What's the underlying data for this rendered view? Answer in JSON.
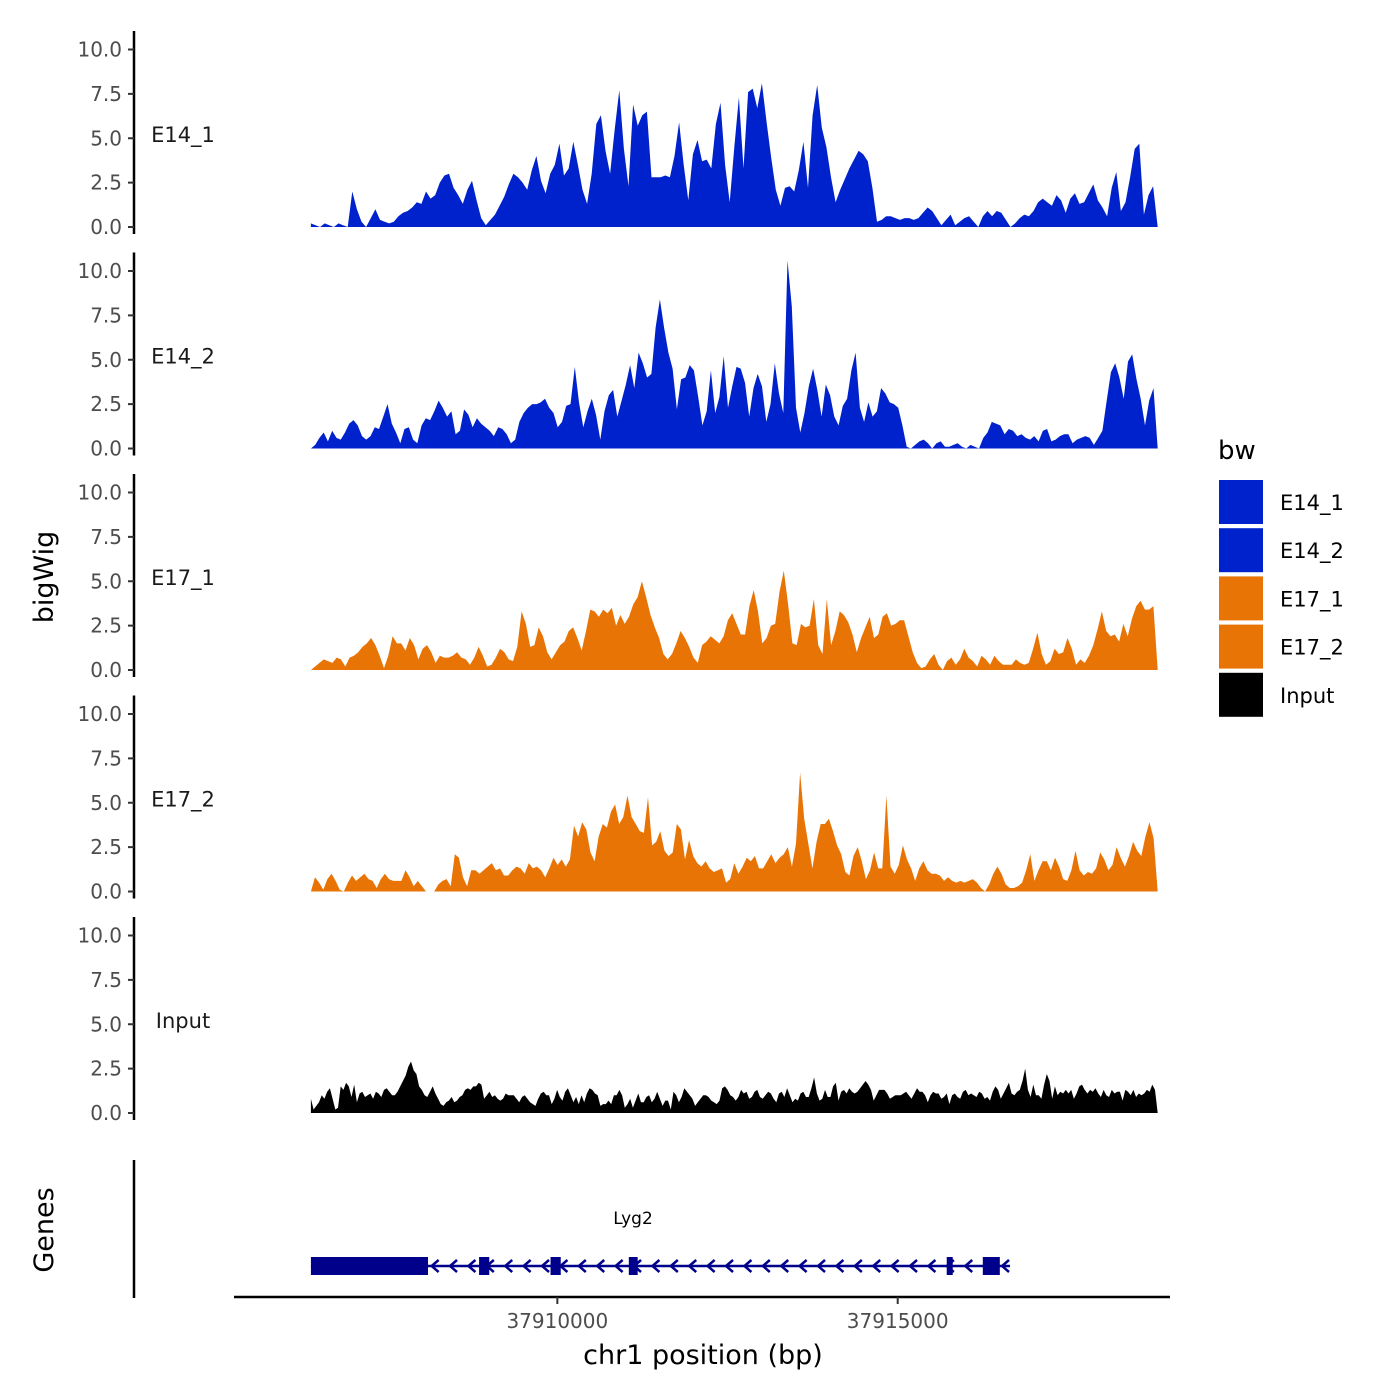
{
  "chart_data": {
    "type": "area",
    "ylabel": "bigWig",
    "xlabel": "chr1 position (bp)",
    "ylim": [
      0,
      10.6
    ],
    "yticks": [
      0,
      2.5,
      5,
      7.5,
      10
    ],
    "ytick_labels": [
      "0.0",
      "2.5",
      "5.0",
      "7.5",
      "10.0"
    ],
    "xlim": [
      37905250,
      37919000
    ],
    "xticks": [
      37910000,
      37915000
    ],
    "xtick_labels": [
      "37910000",
      "37915000"
    ],
    "data_range": [
      37906380,
      37918820
    ],
    "legend": {
      "title": "bw",
      "position": "right",
      "entries": [
        {
          "label": "E14_1",
          "color": "#0022CC"
        },
        {
          "label": "E14_2",
          "color": "#0022CC"
        },
        {
          "label": "E17_1",
          "color": "#E87405"
        },
        {
          "label": "E17_2",
          "color": "#E87405"
        },
        {
          "label": "Input",
          "color": "#000000"
        }
      ]
    },
    "series": [
      {
        "name": "E14_1",
        "color": "#0022CC",
        "values": [
          0.2,
          0.1,
          0.0,
          0.2,
          0.1,
          0.0,
          0.2,
          0.1,
          0.0,
          2.0,
          1.0,
          0.3,
          0.0,
          0.5,
          1.0,
          0.4,
          0.3,
          0.2,
          0.3,
          0.6,
          0.8,
          0.9,
          1.1,
          1.4,
          1.3,
          2.0,
          1.6,
          1.8,
          2.5,
          2.9,
          3.0,
          2.2,
          1.8,
          1.3,
          2.1,
          2.6,
          1.5,
          0.5,
          0.1,
          0.4,
          0.7,
          1.2,
          1.7,
          2.4,
          3.0,
          2.8,
          2.5,
          2.1,
          3.2,
          4.0,
          2.6,
          1.9,
          3.0,
          3.5,
          4.7,
          2.9,
          3.3,
          4.8,
          3.5,
          2.1,
          1.3,
          3.0,
          5.8,
          6.3,
          4.3,
          3.0,
          5.5,
          7.7,
          4.4,
          2.3,
          6.9,
          5.7,
          6.3,
          6.5,
          2.8,
          2.8,
          2.8,
          2.9,
          2.8,
          4.0,
          5.9,
          3.5,
          1.5,
          4.1,
          4.9,
          3.7,
          3.8,
          3.3,
          5.8,
          7.0,
          3.5,
          1.4,
          4.5,
          7.3,
          3.3,
          7.6,
          7.8,
          6.7,
          8.1,
          5.9,
          3.9,
          2.1,
          1.2,
          2.2,
          2.3,
          2.0,
          3.2,
          4.8,
          2.2,
          6.3,
          8.0,
          5.6,
          4.5,
          2.8,
          1.4,
          2.1,
          2.7,
          3.3,
          3.8,
          4.3,
          4.1,
          3.7,
          2.2,
          0.3,
          0.4,
          0.6,
          0.6,
          0.5,
          0.4,
          0.5,
          0.5,
          0.4,
          0.5,
          0.8,
          1.1,
          0.9,
          0.5,
          0.1,
          0.4,
          0.7,
          0.1,
          0.3,
          0.5,
          0.6,
          0.3,
          0.0,
          0.6,
          0.9,
          0.6,
          0.9,
          0.8,
          0.4,
          0.0,
          0.2,
          0.5,
          0.7,
          0.6,
          0.9,
          1.4,
          1.6,
          1.4,
          1.2,
          1.8,
          1.5,
          0.8,
          1.6,
          1.9,
          1.3,
          1.4,
          1.9,
          2.4,
          1.5,
          1.1,
          0.6,
          2.2,
          3.1,
          0.9,
          1.4,
          2.8,
          4.4,
          4.7,
          0.7,
          1.8,
          2.3,
          0.0
        ]
      },
      {
        "name": "E14_2",
        "color": "#0022CC",
        "values": [
          0.0,
          0.2,
          0.6,
          0.9,
          0.4,
          1.0,
          0.6,
          0.5,
          0.9,
          1.4,
          1.6,
          1.3,
          0.7,
          0.5,
          0.7,
          1.2,
          1.1,
          1.8,
          2.5,
          1.4,
          0.9,
          0.3,
          1.1,
          1.2,
          0.5,
          0.3,
          1.3,
          1.7,
          1.6,
          2.1,
          2.7,
          2.3,
          1.8,
          2.1,
          0.8,
          1.0,
          2.2,
          1.9,
          1.2,
          1.7,
          1.4,
          1.2,
          1.0,
          0.7,
          1.2,
          1.1,
          0.8,
          0.3,
          0.5,
          1.5,
          2.0,
          2.3,
          2.5,
          2.5,
          2.6,
          2.8,
          2.3,
          2.0,
          1.2,
          1.5,
          2.4,
          2.5,
          4.6,
          2.6,
          1.2,
          2.1,
          2.8,
          1.9,
          0.5,
          2.1,
          3.0,
          3.3,
          1.8,
          2.7,
          3.6,
          4.7,
          3.4,
          5.4,
          4.8,
          4.0,
          4.2,
          6.8,
          8.4,
          6.8,
          5.4,
          4.5,
          2.2,
          3.9,
          4.0,
          4.7,
          4.4,
          2.9,
          1.3,
          2.1,
          4.4,
          2.0,
          2.9,
          5.2,
          2.3,
          3.5,
          4.6,
          4.5,
          3.7,
          1.8,
          3.4,
          4.2,
          3.5,
          1.5,
          2.5,
          4.8,
          3.1,
          2.0,
          10.6,
          8.0,
          2.3,
          0.9,
          2.0,
          3.5,
          4.5,
          3.3,
          1.8,
          3.6,
          3.0,
          1.8,
          1.3,
          2.4,
          2.8,
          4.4,
          5.4,
          2.3,
          1.5,
          2.6,
          1.8,
          2.1,
          3.4,
          3.1,
          2.6,
          2.5,
          2.3,
          1.3,
          0.1,
          0.0,
          0.2,
          0.4,
          0.5,
          0.3,
          0.0,
          0.3,
          0.4,
          0.1,
          0.1,
          0.2,
          0.3,
          0.1,
          0.0,
          0.2,
          0.1,
          0.0,
          0.6,
          0.9,
          1.5,
          1.4,
          1.3,
          0.8,
          1.1,
          1.0,
          0.7,
          0.8,
          0.6,
          0.5,
          0.7,
          0.4,
          1.0,
          1.1,
          0.4,
          0.5,
          0.7,
          0.8,
          0.8,
          0.3,
          0.5,
          0.6,
          0.7,
          0.6,
          0.2,
          0.6,
          1.0,
          2.7,
          4.3,
          4.8,
          4.0,
          2.8,
          4.9,
          5.3,
          3.9,
          2.8,
          1.3,
          2.7,
          3.4,
          0.0
        ]
      },
      {
        "name": "E17_1",
        "color": "#E87405",
        "values": [
          0.0,
          0.2,
          0.4,
          0.6,
          0.5,
          0.4,
          0.7,
          0.6,
          0.2,
          0.7,
          0.8,
          1.0,
          1.3,
          1.5,
          1.8,
          1.4,
          0.8,
          0.1,
          0.8,
          1.9,
          1.5,
          1.5,
          1.1,
          1.8,
          1.4,
          0.6,
          1.2,
          1.4,
          1.0,
          0.4,
          0.8,
          0.7,
          0.7,
          0.8,
          1.0,
          0.7,
          0.6,
          0.3,
          0.7,
          1.3,
          0.8,
          0.2,
          0.3,
          0.7,
          1.2,
          1.0,
          0.6,
          0.5,
          1.3,
          3.3,
          2.6,
          1.3,
          1.4,
          2.4,
          1.9,
          1.0,
          0.6,
          1.0,
          1.4,
          1.6,
          2.2,
          2.4,
          1.8,
          1.1,
          2.2,
          3.4,
          3.3,
          3.0,
          3.4,
          3.2,
          3.5,
          2.5,
          3.1,
          2.6,
          3.0,
          3.7,
          4.1,
          5.0,
          4.1,
          3.1,
          2.4,
          1.8,
          0.9,
          0.6,
          0.9,
          1.5,
          2.2,
          1.8,
          1.3,
          0.7,
          0.4,
          1.4,
          1.6,
          1.9,
          1.7,
          1.5,
          1.9,
          2.8,
          3.2,
          2.6,
          2.0,
          2.0,
          3.6,
          4.5,
          3.3,
          1.5,
          1.8,
          2.5,
          2.6,
          4.4,
          5.6,
          3.7,
          1.5,
          1.4,
          2.6,
          2.4,
          2.5,
          4.0,
          1.4,
          0.9,
          4.0,
          1.4,
          2.2,
          3.3,
          3.1,
          2.7,
          2.0,
          1.0,
          1.8,
          2.4,
          3.0,
          1.8,
          2.0,
          3.0,
          3.2,
          2.5,
          2.6,
          2.8,
          2.8,
          1.9,
          1.0,
          0.4,
          0.1,
          0.2,
          0.6,
          0.9,
          0.3,
          0.0,
          0.5,
          0.7,
          0.3,
          0.6,
          1.2,
          0.7,
          0.5,
          0.2,
          0.8,
          0.6,
          0.3,
          0.8,
          0.5,
          0.3,
          0.3,
          0.3,
          0.6,
          0.4,
          0.3,
          0.4,
          1.2,
          2.1,
          0.9,
          0.3,
          0.5,
          1.2,
          0.9,
          1.0,
          1.8,
          1.2,
          0.3,
          0.6,
          0.4,
          0.8,
          1.4,
          2.3,
          3.3,
          2.2,
          1.9,
          2.0,
          1.6,
          2.6,
          1.9,
          2.9,
          3.6,
          3.9,
          3.4,
          3.4,
          3.6,
          0.0
        ]
      },
      {
        "name": "E17_2",
        "color": "#E87405",
        "values": [
          0.0,
          0.8,
          0.5,
          0.1,
          0.7,
          1.0,
          0.6,
          0.1,
          0.0,
          0.5,
          0.9,
          0.6,
          0.8,
          1.0,
          0.7,
          0.6,
          0.2,
          0.7,
          1.0,
          0.7,
          0.6,
          0.6,
          0.6,
          1.2,
          0.8,
          0.3,
          0.6,
          0.3,
          0.0,
          0.0,
          0.0,
          0.4,
          0.6,
          0.7,
          0.3,
          2.1,
          1.9,
          0.8,
          0.3,
          1.2,
          1.2,
          1.0,
          1.2,
          1.4,
          1.6,
          1.2,
          1.3,
          0.9,
          0.9,
          1.2,
          1.4,
          1.3,
          1.0,
          1.6,
          1.3,
          1.4,
          1.2,
          0.8,
          1.3,
          1.9,
          1.5,
          1.8,
          1.4,
          1.8,
          3.7,
          3.1,
          3.9,
          3.5,
          2.2,
          1.7,
          3.1,
          3.8,
          3.6,
          4.5,
          4.9,
          3.8,
          4.2,
          5.4,
          4.2,
          3.8,
          3.4,
          3.3,
          5.3,
          2.6,
          2.8,
          3.4,
          2.3,
          2.0,
          2.2,
          3.8,
          3.5,
          1.8,
          2.9,
          2.0,
          1.6,
          1.4,
          1.7,
          1.3,
          1.1,
          1.2,
          1.3,
          0.5,
          0.7,
          1.6,
          1.0,
          1.4,
          1.9,
          1.7,
          2.0,
          1.3,
          1.3,
          1.7,
          2.1,
          1.6,
          1.9,
          2.1,
          2.5,
          1.4,
          2.7,
          6.7,
          4.1,
          2.7,
          1.3,
          2.8,
          3.8,
          3.8,
          4.1,
          3.4,
          2.6,
          2.1,
          1.1,
          0.9,
          2.0,
          2.5,
          1.7,
          0.7,
          1.2,
          2.2,
          1.3,
          1.3,
          5.4,
          1.4,
          1.0,
          1.5,
          2.6,
          1.8,
          1.3,
          0.6,
          1.3,
          1.7,
          1.2,
          1.0,
          1.0,
          0.9,
          0.6,
          0.8,
          0.6,
          0.5,
          0.6,
          0.5,
          0.6,
          0.7,
          0.5,
          0.2,
          0.0,
          0.4,
          1.0,
          1.4,
          1.0,
          0.4,
          0.2,
          0.2,
          0.3,
          0.5,
          1.2,
          2.1,
          0.6,
          1.2,
          1.7,
          1.7,
          1.2,
          1.9,
          1.4,
          0.7,
          0.6,
          1.2,
          2.3,
          1.2,
          0.9,
          1.1,
          1.0,
          1.3,
          2.2,
          1.8,
          1.2,
          1.5,
          2.5,
          1.9,
          1.4,
          2.0,
          2.8,
          2.3,
          2.0,
          3.1,
          3.9,
          3.0,
          0.0
        ]
      },
      {
        "name": "Input",
        "color": "#000000",
        "values": [
          0.8,
          0.2,
          0.4,
          0.6,
          1.0,
          0.8,
          1.2,
          1.4,
          0.8,
          0.2,
          0.3,
          1.5,
          1.3,
          1.7,
          1.5,
          0.9,
          1.6,
          0.6,
          1.1,
          1.2,
          0.9,
          1.0,
          1.1,
          0.8,
          1.2,
          1.1,
          0.9,
          1.3,
          1.4,
          1.2,
          1.0,
          1.0,
          1.2,
          1.5,
          1.8,
          2.1,
          2.6,
          2.9,
          2.4,
          2.2,
          1.5,
          1.3,
          1.0,
          0.9,
          1.2,
          1.5,
          1.1,
          0.8,
          0.5,
          0.4,
          0.6,
          0.7,
          0.9,
          0.6,
          0.7,
          0.9,
          1.0,
          1.3,
          1.4,
          1.3,
          1.5,
          1.5,
          1.7,
          1.6,
          0.8,
          1.0,
          1.2,
          0.9,
          1.0,
          0.8,
          0.7,
          0.8,
          1.1,
          1.0,
          1.0,
          1.0,
          0.8,
          0.6,
          0.9,
          1.0,
          0.8,
          0.6,
          0.5,
          0.4,
          0.8,
          1.1,
          1.2,
          1.0,
          1.0,
          0.5,
          0.8,
          1.3,
          0.9,
          0.7,
          1.2,
          1.4,
          1.0,
          0.6,
          0.9,
          0.5,
          1.0,
          0.6,
          1.1,
          1.4,
          1.3,
          1.1,
          1.0,
          0.4,
          0.5,
          0.5,
          0.7,
          0.5,
          1.0,
          1.0,
          1.3,
          1.0,
          0.3,
          0.5,
          0.8,
          0.3,
          0.7,
          1.1,
          0.6,
          0.6,
          0.9,
          1.0,
          0.6,
          0.8,
          1.2,
          0.8,
          0.4,
          0.7,
          0.7,
          0.2,
          1.2,
          1.0,
          0.6,
          0.9,
          1.4,
          1.2,
          1.0,
          0.8,
          0.4,
          0.6,
          0.8,
          1.0,
          1.0,
          0.9,
          0.7,
          0.6,
          0.5,
          0.7,
          1.4,
          1.5,
          1.3,
          1.0,
          0.9,
          0.7,
          0.9,
          1.3,
          1.1,
          1.2,
          0.8,
          0.9,
          1.2,
          1.3,
          0.9,
          0.8,
          1.0,
          1.2,
          1.1,
          0.8,
          0.6,
          1.1,
          1.2,
          0.9,
          1.4,
          1.0,
          0.6,
          0.8,
          0.7,
          1.1,
          1.2,
          0.9,
          0.9,
          1.4,
          2.0,
          1.1,
          0.7,
          0.8,
          1.3,
          0.9,
          0.9,
          1.5,
          1.7,
          0.7,
          1.2,
          1.3,
          1.1,
          1.4,
          1.2,
          1.1,
          1.2,
          1.4,
          1.6,
          1.8,
          1.6,
          1.3,
          0.7,
          1.0,
          1.3,
          1.3,
          1.3,
          1.1,
          0.8,
          0.9,
          1.0,
          1.0,
          1.0,
          1.1,
          1.2,
          1.0,
          0.8,
          1.1,
          1.4,
          1.2,
          1.2,
          1.0,
          0.6,
          1.0,
          1.2,
          1.1,
          1.1,
          0.8,
          0.9,
          1.1,
          0.5,
          1.0,
          1.1,
          0.9,
          0.8,
          1.2,
          1.3,
          1.0,
          1.1,
          1.0,
          0.9,
          1.2,
          1.1,
          0.8,
          0.9,
          0.7,
          1.2,
          1.5,
          1.3,
          0.8,
          1.1,
          1.4,
          1.7,
          1.1,
          1.0,
          1.2,
          1.3,
          1.8,
          2.5,
          1.3,
          0.9,
          1.6,
          1.0,
          1.0,
          0.8,
          1.6,
          2.2,
          1.8,
          0.8,
          1.5,
          1.0,
          1.2,
          1.1,
          1.3,
          1.1,
          1.3,
          0.8,
          1.1,
          1.5,
          1.6,
          1.3,
          1.1,
          1.3,
          1.2,
          1.4,
          1.1,
          0.9,
          1.3,
          1.0,
          0.9,
          1.3,
          1.1,
          1.2,
          1.2,
          0.7,
          1.3,
          1.2,
          1.0,
          1.3,
          0.9,
          1.1,
          1.0,
          1.1,
          1.3,
          1.2,
          1.6,
          1.3,
          0.0
        ]
      }
    ],
    "gene_track": {
      "ylabel": "Genes",
      "gene": "Lyg2",
      "strand": "-",
      "color": "#00008B",
      "start": 37906380,
      "end": 37916650,
      "exons": [
        [
          37906380,
          37908100
        ],
        [
          37908850,
          37909000
        ],
        [
          37909900,
          37910050
        ],
        [
          37911050,
          37911180
        ],
        [
          37915720,
          37915800
        ],
        [
          37916250,
          37916500
        ]
      ]
    }
  }
}
